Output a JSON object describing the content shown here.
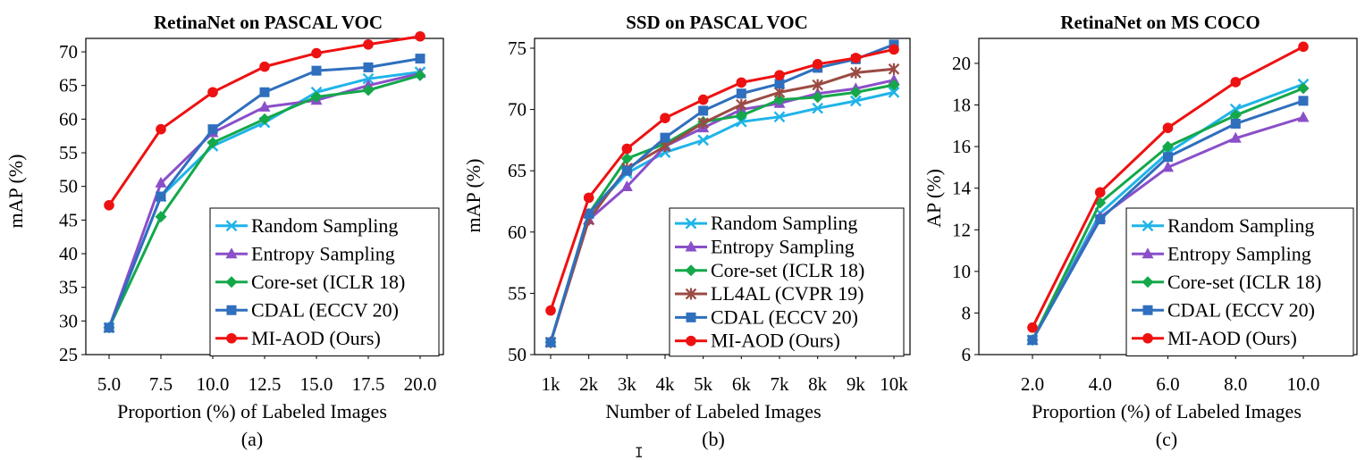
{
  "colors": {
    "random": "#1fb4e8",
    "entropy": "#8a4fc9",
    "coreset": "#14a84a",
    "ll4al": "#9a4b43",
    "cdal": "#2f6fbd",
    "miaod": "#ee1111",
    "axis": "#000000",
    "grid": "#d9d9d9"
  },
  "chart_data": [
    {
      "type": "line",
      "title": "RetinaNet on PASCAL VOC",
      "xlabel": "Proportion (%) of Labeled Images",
      "ylabel": "mAP (%)",
      "caption": "(a)",
      "categories": [
        "5.0",
        "7.5",
        "10.0",
        "12.5",
        "15.0",
        "17.5",
        "20.0"
      ],
      "ylim": [
        25,
        72
      ],
      "yticks": [
        25,
        30,
        35,
        40,
        45,
        50,
        55,
        60,
        65,
        70
      ],
      "grid": false,
      "legend_position": "bottom-right",
      "series": [
        {
          "name": "Random Sampling",
          "color_key": "random",
          "marker": "x",
          "values": [
            29.0,
            48.5,
            56.0,
            59.5,
            64.0,
            66.0,
            67.0
          ]
        },
        {
          "name": "Entropy Sampling",
          "color_key": "entropy",
          "marker": "triangle",
          "values": [
            29.0,
            50.5,
            58.0,
            61.8,
            62.8,
            65.0,
            66.8
          ]
        },
        {
          "name": "Core-set (ICLR 18)",
          "color_key": "coreset",
          "marker": "diamond",
          "values": [
            29.0,
            45.5,
            56.5,
            60.0,
            63.3,
            64.3,
            66.5
          ]
        },
        {
          "name": "CDAL (ECCV 20)",
          "color_key": "cdal",
          "marker": "square",
          "values": [
            29.0,
            48.5,
            58.5,
            64.0,
            67.2,
            67.7,
            69.0
          ]
        },
        {
          "name": "MI-AOD (Ours)",
          "color_key": "miaod",
          "marker": "circle",
          "values": [
            47.2,
            58.5,
            64.0,
            67.8,
            69.8,
            71.1,
            72.3
          ]
        }
      ]
    },
    {
      "type": "line",
      "title": "SSD on PASCAL VOC",
      "xlabel": "Number of Labeled Images",
      "ylabel": "mAP  (%)",
      "caption": "(b)",
      "categories": [
        "1k",
        "2k",
        "3k",
        "4k",
        "5k",
        "6k",
        "7k",
        "8k",
        "9k",
        "10k"
      ],
      "ylim": [
        50,
        75.8
      ],
      "yticks": [
        50,
        55,
        60,
        65,
        70,
        75
      ],
      "grid": false,
      "legend_position": "bottom-right",
      "series": [
        {
          "name": "Random Sampling",
          "color_key": "random",
          "marker": "x",
          "values": [
            51.0,
            61.5,
            64.8,
            66.5,
            67.5,
            69.0,
            69.4,
            70.1,
            70.7,
            71.4
          ]
        },
        {
          "name": "Entropy Sampling",
          "color_key": "entropy",
          "marker": "triangle",
          "values": [
            51.0,
            61.0,
            63.7,
            67.0,
            68.5,
            70.0,
            70.5,
            71.3,
            71.7,
            72.4
          ]
        },
        {
          "name": "Core-set (ICLR 18)",
          "color_key": "coreset",
          "marker": "diamond",
          "values": [
            51.0,
            61.5,
            66.0,
            67.2,
            69.0,
            69.5,
            70.8,
            71.0,
            71.4,
            72.0
          ]
        },
        {
          "name": "LL4AL (CVPR 19)",
          "color_key": "ll4al",
          "marker": "asterisk",
          "values": [
            51.0,
            61.0,
            65.2,
            67.0,
            68.9,
            70.4,
            71.4,
            72.0,
            73.0,
            73.3
          ]
        },
        {
          "name": "CDAL (ECCV 20)",
          "color_key": "cdal",
          "marker": "square",
          "values": [
            51.0,
            61.5,
            65.0,
            67.7,
            69.9,
            71.3,
            72.1,
            73.4,
            74.1,
            75.3
          ]
        },
        {
          "name": "MI-AOD (Ours)",
          "color_key": "miaod",
          "marker": "circle",
          "values": [
            53.6,
            62.8,
            66.8,
            69.3,
            70.8,
            72.2,
            72.8,
            73.7,
            74.2,
            74.9
          ]
        }
      ]
    },
    {
      "type": "line",
      "title": "RetinaNet on MS COCO",
      "xlabel": "Proportion (%) of Labeled Images",
      "ylabel": "AP (%)",
      "caption": "(c)",
      "categories": [
        "2.0",
        "4.0",
        "6.0",
        "8.0",
        "10.0"
      ],
      "ylim": [
        6,
        21.2
      ],
      "yticks": [
        6,
        8,
        10,
        12,
        14,
        16,
        18,
        20
      ],
      "grid": false,
      "legend_position": "bottom-right",
      "series": [
        {
          "name": "Random Sampling",
          "color_key": "random",
          "marker": "x",
          "values": [
            6.7,
            12.8,
            15.7,
            17.8,
            19.0
          ]
        },
        {
          "name": "Entropy Sampling",
          "color_key": "entropy",
          "marker": "triangle",
          "values": [
            6.7,
            12.6,
            15.0,
            16.4,
            17.4
          ]
        },
        {
          "name": "Core-set (ICLR 18)",
          "color_key": "coreset",
          "marker": "diamond",
          "values": [
            6.7,
            13.3,
            16.0,
            17.5,
            18.8
          ]
        },
        {
          "name": "CDAL (ECCV 20)",
          "color_key": "cdal",
          "marker": "square",
          "values": [
            6.7,
            12.5,
            15.5,
            17.1,
            18.2
          ]
        },
        {
          "name": "MI-AOD (Ours)",
          "color_key": "miaod",
          "marker": "circle",
          "values": [
            7.3,
            13.8,
            16.9,
            19.1,
            20.8
          ]
        }
      ]
    }
  ]
}
